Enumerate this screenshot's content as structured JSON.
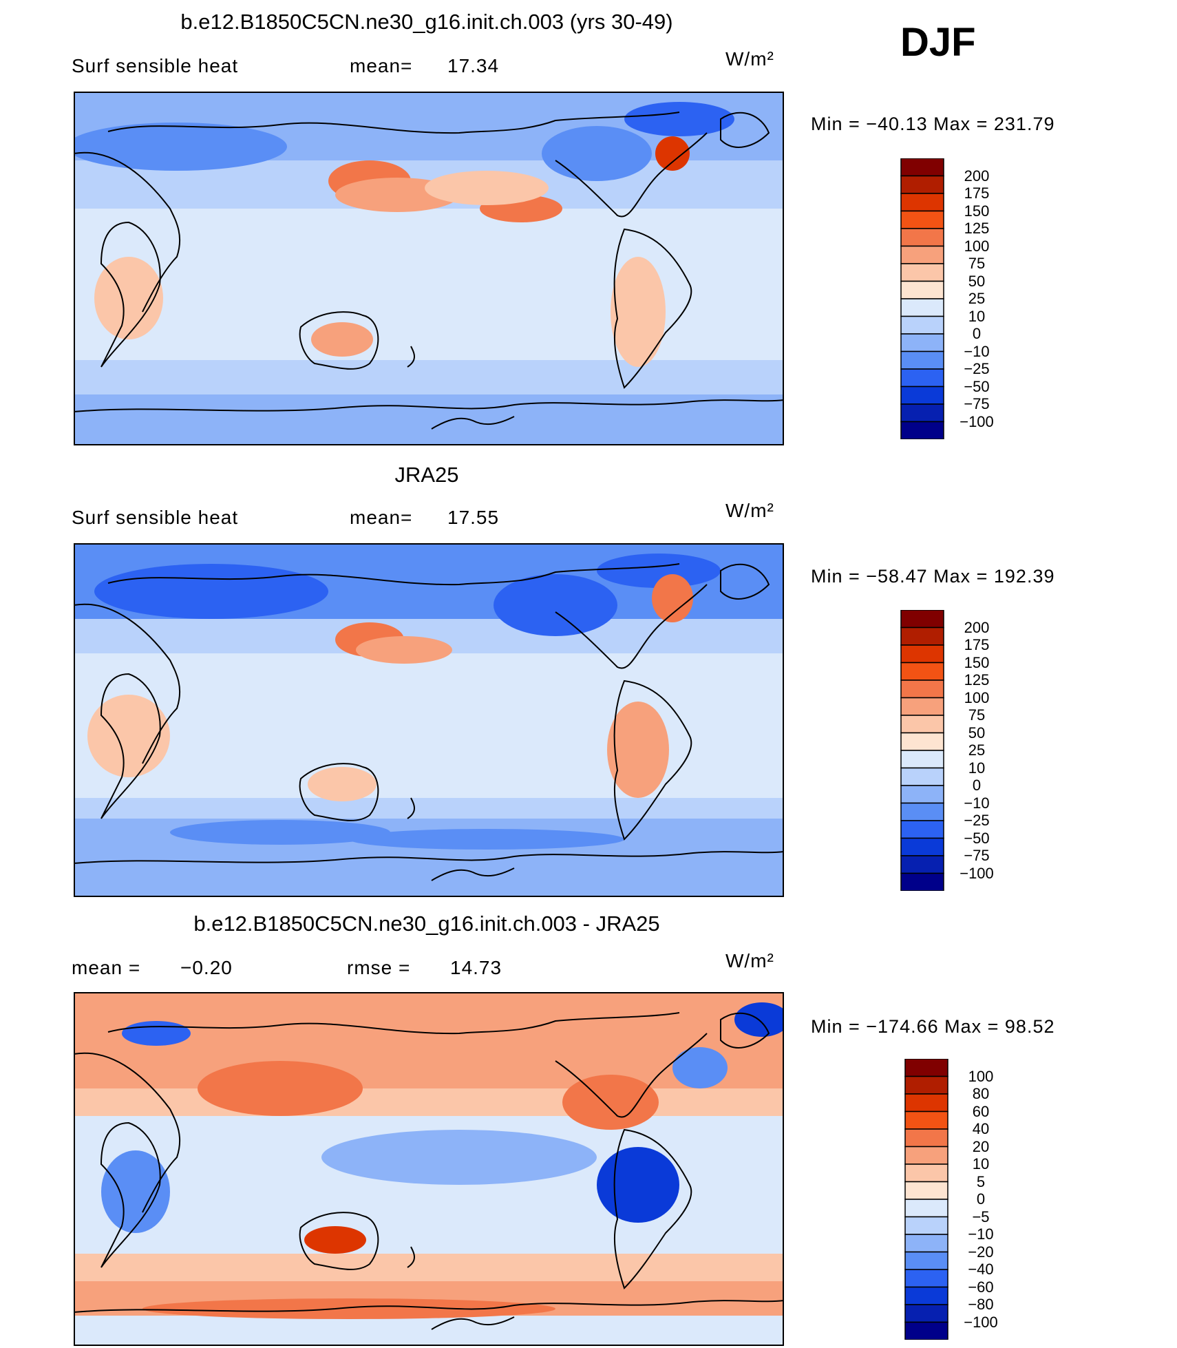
{
  "season": "DJF",
  "panels": [
    {
      "title": "b.e12.B1850C5CN.ne30_g16.init.ch.003 (yrs 30-49)",
      "left_label": "Surf sensible heat",
      "stat_label": "mean=",
      "stat_value": "17.34",
      "units": "W/m²",
      "min_max": "Min = −40.13 Max = 231.79",
      "colorbar": {
        "levels": [
          "200",
          "175",
          "150",
          "125",
          "100",
          "75",
          "50",
          "25",
          "10",
          "0",
          "−10",
          "−25",
          "−50",
          "−75",
          "−100"
        ],
        "colors": [
          "#800000",
          "#b01e00",
          "#dd3500",
          "#f25314",
          "#f27649",
          "#f7a17c",
          "#fbc6a9",
          "#fde4d1",
          "#dbe9fb",
          "#b9d2fb",
          "#8db3f8",
          "#5a8ef5",
          "#2c62f2",
          "#0a3ad8",
          "#0620b0",
          "#00008a"
        ]
      },
      "map_variant": "model"
    },
    {
      "title": "JRA25",
      "left_label": "Surf sensible heat",
      "stat_label": "mean=",
      "stat_value": "17.55",
      "units": "W/m²",
      "min_max": "Min = −58.47 Max = 192.39",
      "colorbar": {
        "levels": [
          "200",
          "175",
          "150",
          "125",
          "100",
          "75",
          "50",
          "25",
          "10",
          "0",
          "−10",
          "−25",
          "−50",
          "−75",
          "−100"
        ],
        "colors": [
          "#800000",
          "#b01e00",
          "#dd3500",
          "#f25314",
          "#f27649",
          "#f7a17c",
          "#fbc6a9",
          "#fde4d1",
          "#dbe9fb",
          "#b9d2fb",
          "#8db3f8",
          "#5a8ef5",
          "#2c62f2",
          "#0a3ad8",
          "#0620b0",
          "#00008a"
        ]
      },
      "map_variant": "obs"
    },
    {
      "title": "b.e12.B1850C5CN.ne30_g16.init.ch.003 - JRA25",
      "left_label": "mean =",
      "left_value": "−0.20",
      "stat_label": "rmse =",
      "stat_value": "14.73",
      "units": "W/m²",
      "min_max": "Min = −174.66 Max = 98.52",
      "colorbar": {
        "levels": [
          "100",
          "80",
          "60",
          "40",
          "20",
          "10",
          "5",
          "0",
          "−5",
          "−10",
          "−20",
          "−40",
          "−60",
          "−80",
          "−100"
        ],
        "colors": [
          "#800000",
          "#b01e00",
          "#dd3500",
          "#f25314",
          "#f27649",
          "#f7a17c",
          "#fbc6a9",
          "#fde4d1",
          "#dbe9fb",
          "#b9d2fb",
          "#8db3f8",
          "#5a8ef5",
          "#2c62f2",
          "#0a3ad8",
          "#0620b0",
          "#00008a"
        ]
      },
      "map_variant": "diff"
    }
  ]
}
